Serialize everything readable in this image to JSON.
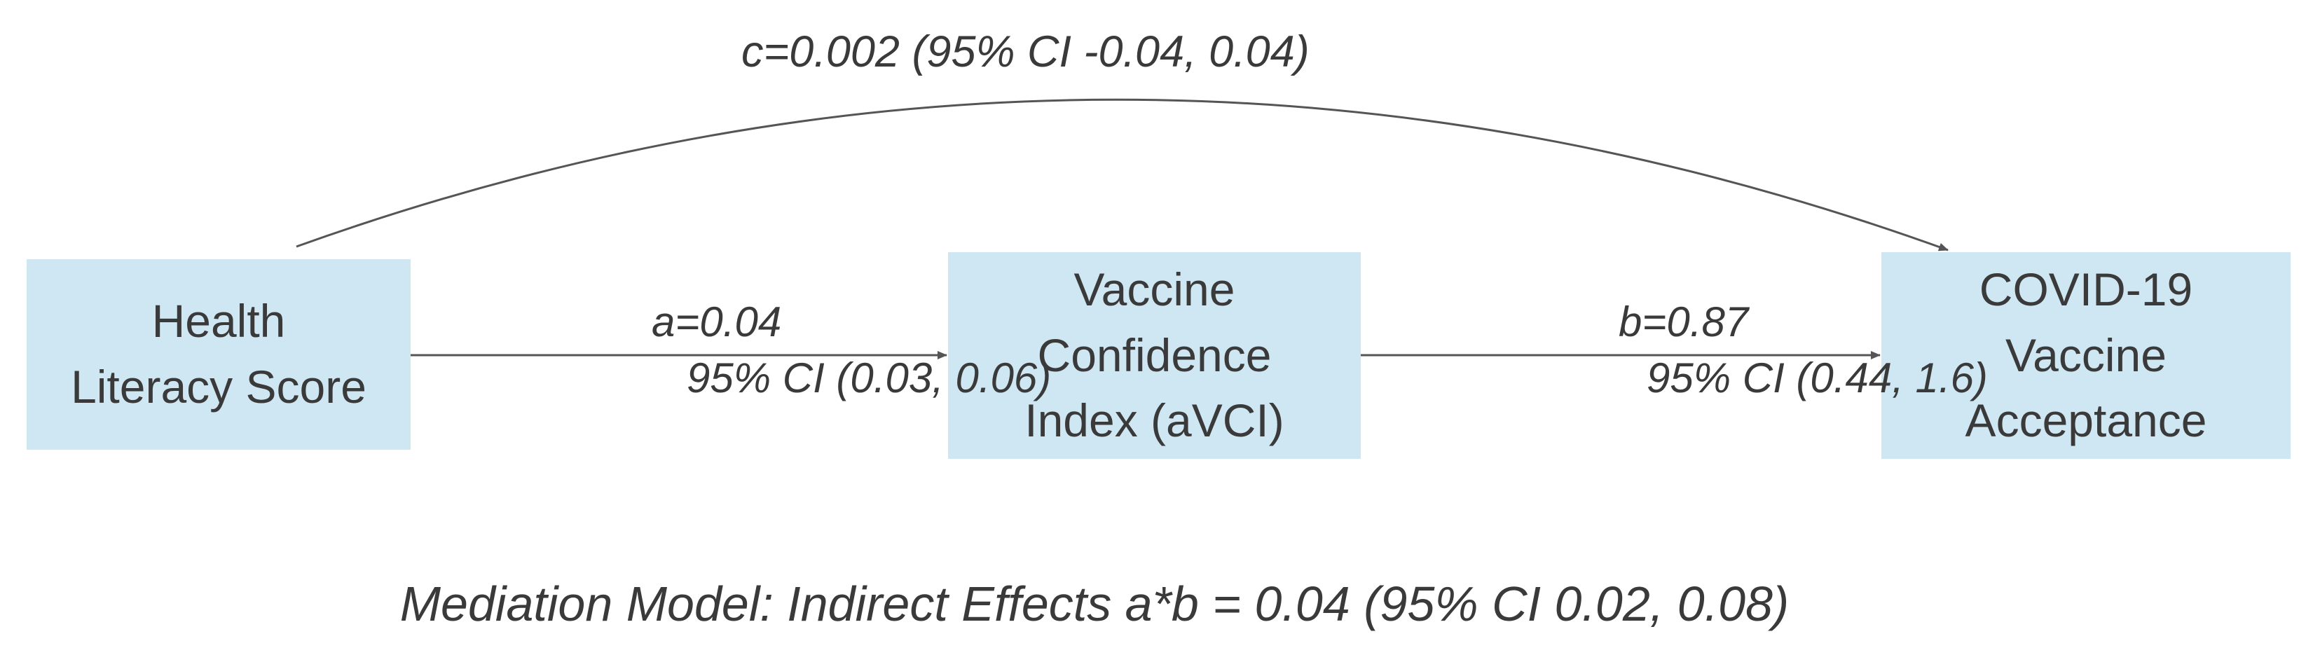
{
  "nodes": {
    "health_literacy": {
      "line1": "Health",
      "line2": "Literacy Score"
    },
    "vaccine_confidence": {
      "line1": "Vaccine",
      "line2": "Confidence",
      "line3": "Index (aVCI)"
    },
    "vaccine_acceptance": {
      "line1": "COVID-19",
      "line2": "Vaccine",
      "line3": "Acceptance"
    }
  },
  "paths": {
    "c": {
      "label": "c=0.002 (95% CI -0.04, 0.04)"
    },
    "a": {
      "coef": "a=0.04",
      "ci": "95% CI (0.03, 0.06)"
    },
    "b": {
      "coef": "b=0.87",
      "ci": "95% CI (0.44, 1.6)"
    }
  },
  "footer": "Mediation Model: Indirect Effects a*b = 0.04  (95% CI 0.02, 0.08)",
  "colors": {
    "node_fill": "#cfe6f3",
    "text": "#3a3a3a",
    "edge": "#555555"
  }
}
